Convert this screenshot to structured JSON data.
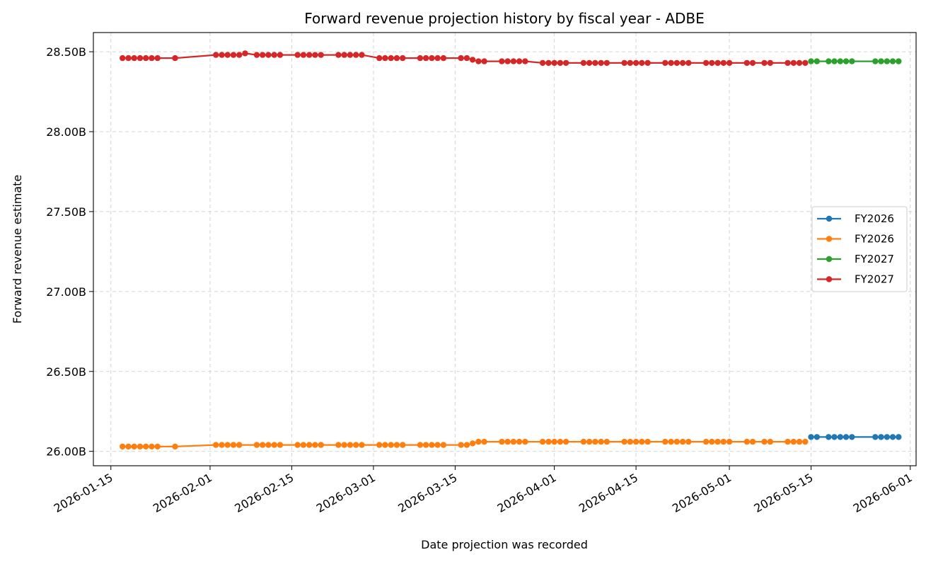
{
  "chart_data": {
    "type": "line",
    "title": "Forward revenue projection history by fiscal year - ADBE",
    "xlabel": "Date projection was recorded",
    "ylabel": "Forward revenue estimate",
    "xlim": [
      "2026-01-12",
      "2026-06-02"
    ],
    "ylim": [
      25.91,
      28.62
    ],
    "x_ticks": [
      "2026-01-15",
      "2026-02-01",
      "2026-02-15",
      "2026-03-01",
      "2026-03-15",
      "2026-04-01",
      "2026-04-15",
      "2026-05-01",
      "2026-05-15",
      "2026-06-01"
    ],
    "y_ticks": [
      26.0,
      26.5,
      27.0,
      27.5,
      28.0,
      28.5
    ],
    "y_tick_labels": [
      "26.00B",
      "26.50B",
      "27.00B",
      "27.50B",
      "28.00B",
      "28.50B"
    ],
    "grid": true,
    "legend_position": "center-right",
    "series": [
      {
        "name": "FY2026",
        "color": "#1f77b4",
        "x": [
          "2026-05-15",
          "2026-05-16",
          "2026-05-18",
          "2026-05-19",
          "2026-05-20",
          "2026-05-21",
          "2026-05-22",
          "2026-05-26",
          "2026-05-27",
          "2026-05-28",
          "2026-05-29",
          "2026-05-30"
        ],
        "y": [
          26.09,
          26.09,
          26.09,
          26.09,
          26.09,
          26.09,
          26.09,
          26.09,
          26.09,
          26.09,
          26.09,
          26.09
        ]
      },
      {
        "name": "FY2026",
        "color": "#ff7f0e",
        "x": [
          "2026-01-17",
          "2026-01-18",
          "2026-01-19",
          "2026-01-20",
          "2026-01-21",
          "2026-01-22",
          "2026-01-23",
          "2026-01-26",
          "2026-02-02",
          "2026-02-03",
          "2026-02-04",
          "2026-02-05",
          "2026-02-06",
          "2026-02-09",
          "2026-02-10",
          "2026-02-11",
          "2026-02-12",
          "2026-02-13",
          "2026-02-16",
          "2026-02-17",
          "2026-02-18",
          "2026-02-19",
          "2026-02-20",
          "2026-02-23",
          "2026-02-24",
          "2026-02-25",
          "2026-02-26",
          "2026-02-27",
          "2026-03-02",
          "2026-03-03",
          "2026-03-04",
          "2026-03-05",
          "2026-03-06",
          "2026-03-09",
          "2026-03-10",
          "2026-03-11",
          "2026-03-12",
          "2026-03-13",
          "2026-03-16",
          "2026-03-17",
          "2026-03-18",
          "2026-03-19",
          "2026-03-20",
          "2026-03-23",
          "2026-03-24",
          "2026-03-25",
          "2026-03-26",
          "2026-03-27",
          "2026-03-30",
          "2026-03-31",
          "2026-04-01",
          "2026-04-02",
          "2026-04-03",
          "2026-04-06",
          "2026-04-07",
          "2026-04-08",
          "2026-04-09",
          "2026-04-10",
          "2026-04-13",
          "2026-04-14",
          "2026-04-15",
          "2026-04-16",
          "2026-04-17",
          "2026-04-20",
          "2026-04-21",
          "2026-04-22",
          "2026-04-23",
          "2026-04-24",
          "2026-04-27",
          "2026-04-28",
          "2026-04-29",
          "2026-04-30",
          "2026-05-01",
          "2026-05-04",
          "2026-05-05",
          "2026-05-07",
          "2026-05-08",
          "2026-05-11",
          "2026-05-12",
          "2026-05-13",
          "2026-05-14"
        ],
        "y": [
          26.03,
          26.03,
          26.03,
          26.03,
          26.03,
          26.03,
          26.03,
          26.03,
          26.04,
          26.04,
          26.04,
          26.04,
          26.04,
          26.04,
          26.04,
          26.04,
          26.04,
          26.04,
          26.04,
          26.04,
          26.04,
          26.04,
          26.04,
          26.04,
          26.04,
          26.04,
          26.04,
          26.04,
          26.04,
          26.04,
          26.04,
          26.04,
          26.04,
          26.04,
          26.04,
          26.04,
          26.04,
          26.04,
          26.04,
          26.04,
          26.05,
          26.06,
          26.06,
          26.06,
          26.06,
          26.06,
          26.06,
          26.06,
          26.06,
          26.06,
          26.06,
          26.06,
          26.06,
          26.06,
          26.06,
          26.06,
          26.06,
          26.06,
          26.06,
          26.06,
          26.06,
          26.06,
          26.06,
          26.06,
          26.06,
          26.06,
          26.06,
          26.06,
          26.06,
          26.06,
          26.06,
          26.06,
          26.06,
          26.06,
          26.06,
          26.06,
          26.06,
          26.06,
          26.06,
          26.06,
          26.06
        ]
      },
      {
        "name": "FY2027",
        "color": "#2ca02c",
        "x": [
          "2026-05-15",
          "2026-05-16",
          "2026-05-18",
          "2026-05-19",
          "2026-05-20",
          "2026-05-21",
          "2026-05-22",
          "2026-05-26",
          "2026-05-27",
          "2026-05-28",
          "2026-05-29",
          "2026-05-30"
        ],
        "y": [
          28.44,
          28.44,
          28.44,
          28.44,
          28.44,
          28.44,
          28.44,
          28.44,
          28.44,
          28.44,
          28.44,
          28.44
        ]
      },
      {
        "name": "FY2027",
        "color": "#d62728",
        "x": [
          "2026-01-17",
          "2026-01-18",
          "2026-01-19",
          "2026-01-20",
          "2026-01-21",
          "2026-01-22",
          "2026-01-23",
          "2026-01-26",
          "2026-02-02",
          "2026-02-03",
          "2026-02-04",
          "2026-02-05",
          "2026-02-06",
          "2026-02-07",
          "2026-02-09",
          "2026-02-10",
          "2026-02-11",
          "2026-02-12",
          "2026-02-13",
          "2026-02-16",
          "2026-02-17",
          "2026-02-18",
          "2026-02-19",
          "2026-02-20",
          "2026-02-23",
          "2026-02-24",
          "2026-02-25",
          "2026-02-26",
          "2026-02-27",
          "2026-03-02",
          "2026-03-03",
          "2026-03-04",
          "2026-03-05",
          "2026-03-06",
          "2026-03-09",
          "2026-03-10",
          "2026-03-11",
          "2026-03-12",
          "2026-03-13",
          "2026-03-16",
          "2026-03-17",
          "2026-03-18",
          "2026-03-19",
          "2026-03-20",
          "2026-03-23",
          "2026-03-24",
          "2026-03-25",
          "2026-03-26",
          "2026-03-27",
          "2026-03-30",
          "2026-03-31",
          "2026-04-01",
          "2026-04-02",
          "2026-04-03",
          "2026-04-06",
          "2026-04-07",
          "2026-04-08",
          "2026-04-09",
          "2026-04-10",
          "2026-04-13",
          "2026-04-14",
          "2026-04-15",
          "2026-04-16",
          "2026-04-17",
          "2026-04-20",
          "2026-04-21",
          "2026-04-22",
          "2026-04-23",
          "2026-04-24",
          "2026-04-27",
          "2026-04-28",
          "2026-04-29",
          "2026-04-30",
          "2026-05-01",
          "2026-05-04",
          "2026-05-05",
          "2026-05-07",
          "2026-05-08",
          "2026-05-11",
          "2026-05-12",
          "2026-05-13",
          "2026-05-14"
        ],
        "y": [
          28.46,
          28.46,
          28.46,
          28.46,
          28.46,
          28.46,
          28.46,
          28.46,
          28.48,
          28.48,
          28.48,
          28.48,
          28.48,
          28.49,
          28.48,
          28.48,
          28.48,
          28.48,
          28.48,
          28.48,
          28.48,
          28.48,
          28.48,
          28.48,
          28.48,
          28.48,
          28.48,
          28.48,
          28.48,
          28.46,
          28.46,
          28.46,
          28.46,
          28.46,
          28.46,
          28.46,
          28.46,
          28.46,
          28.46,
          28.46,
          28.46,
          28.45,
          28.44,
          28.44,
          28.44,
          28.44,
          28.44,
          28.44,
          28.44,
          28.43,
          28.43,
          28.43,
          28.43,
          28.43,
          28.43,
          28.43,
          28.43,
          28.43,
          28.43,
          28.43,
          28.43,
          28.43,
          28.43,
          28.43,
          28.43,
          28.43,
          28.43,
          28.43,
          28.43,
          28.43,
          28.43,
          28.43,
          28.43,
          28.43,
          28.43,
          28.43,
          28.43,
          28.43,
          28.43,
          28.43,
          28.43,
          28.43
        ]
      }
    ]
  }
}
